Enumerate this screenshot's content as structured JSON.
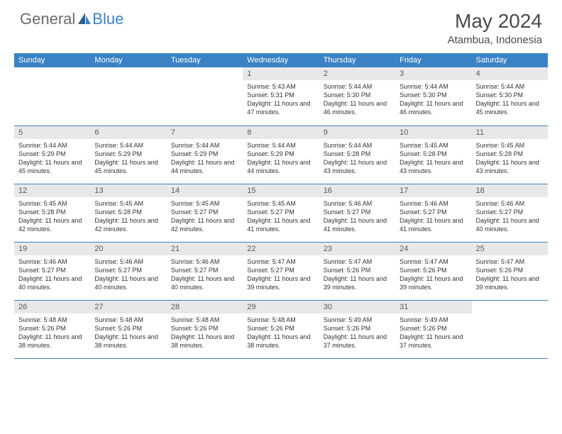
{
  "brand": {
    "part1": "General",
    "part2": "Blue"
  },
  "title": "May 2024",
  "location": "Atambua, Indonesia",
  "colors": {
    "header_bg": "#3b82c4",
    "header_text": "#ffffff",
    "daynum_bg": "#e8e8e8",
    "daynum_text": "#5a5a5a",
    "body_text": "#333333",
    "border": "#3b82c4"
  },
  "weekdays": [
    "Sunday",
    "Monday",
    "Tuesday",
    "Wednesday",
    "Thursday",
    "Friday",
    "Saturday"
  ],
  "weeks": [
    [
      null,
      null,
      null,
      {
        "d": "1",
        "sr": "5:43 AM",
        "ss": "5:31 PM",
        "dl": "11 hours and 47 minutes."
      },
      {
        "d": "2",
        "sr": "5:44 AM",
        "ss": "5:30 PM",
        "dl": "11 hours and 46 minutes."
      },
      {
        "d": "3",
        "sr": "5:44 AM",
        "ss": "5:30 PM",
        "dl": "11 hours and 46 minutes."
      },
      {
        "d": "4",
        "sr": "5:44 AM",
        "ss": "5:30 PM",
        "dl": "11 hours and 45 minutes."
      }
    ],
    [
      {
        "d": "5",
        "sr": "5:44 AM",
        "ss": "5:29 PM",
        "dl": "11 hours and 45 minutes."
      },
      {
        "d": "6",
        "sr": "5:44 AM",
        "ss": "5:29 PM",
        "dl": "11 hours and 45 minutes."
      },
      {
        "d": "7",
        "sr": "5:44 AM",
        "ss": "5:29 PM",
        "dl": "11 hours and 44 minutes."
      },
      {
        "d": "8",
        "sr": "5:44 AM",
        "ss": "5:29 PM",
        "dl": "11 hours and 44 minutes."
      },
      {
        "d": "9",
        "sr": "5:44 AM",
        "ss": "5:28 PM",
        "dl": "11 hours and 43 minutes."
      },
      {
        "d": "10",
        "sr": "5:45 AM",
        "ss": "5:28 PM",
        "dl": "11 hours and 43 minutes."
      },
      {
        "d": "11",
        "sr": "5:45 AM",
        "ss": "5:28 PM",
        "dl": "11 hours and 43 minutes."
      }
    ],
    [
      {
        "d": "12",
        "sr": "5:45 AM",
        "ss": "5:28 PM",
        "dl": "11 hours and 42 minutes."
      },
      {
        "d": "13",
        "sr": "5:45 AM",
        "ss": "5:28 PM",
        "dl": "11 hours and 42 minutes."
      },
      {
        "d": "14",
        "sr": "5:45 AM",
        "ss": "5:27 PM",
        "dl": "11 hours and 42 minutes."
      },
      {
        "d": "15",
        "sr": "5:45 AM",
        "ss": "5:27 PM",
        "dl": "11 hours and 41 minutes."
      },
      {
        "d": "16",
        "sr": "5:46 AM",
        "ss": "5:27 PM",
        "dl": "11 hours and 41 minutes."
      },
      {
        "d": "17",
        "sr": "5:46 AM",
        "ss": "5:27 PM",
        "dl": "11 hours and 41 minutes."
      },
      {
        "d": "18",
        "sr": "5:46 AM",
        "ss": "5:27 PM",
        "dl": "11 hours and 40 minutes."
      }
    ],
    [
      {
        "d": "19",
        "sr": "5:46 AM",
        "ss": "5:27 PM",
        "dl": "11 hours and 40 minutes."
      },
      {
        "d": "20",
        "sr": "5:46 AM",
        "ss": "5:27 PM",
        "dl": "11 hours and 40 minutes."
      },
      {
        "d": "21",
        "sr": "5:46 AM",
        "ss": "5:27 PM",
        "dl": "11 hours and 40 minutes."
      },
      {
        "d": "22",
        "sr": "5:47 AM",
        "ss": "5:27 PM",
        "dl": "11 hours and 39 minutes."
      },
      {
        "d": "23",
        "sr": "5:47 AM",
        "ss": "5:26 PM",
        "dl": "11 hours and 39 minutes."
      },
      {
        "d": "24",
        "sr": "5:47 AM",
        "ss": "5:26 PM",
        "dl": "11 hours and 39 minutes."
      },
      {
        "d": "25",
        "sr": "5:47 AM",
        "ss": "5:26 PM",
        "dl": "11 hours and 39 minutes."
      }
    ],
    [
      {
        "d": "26",
        "sr": "5:48 AM",
        "ss": "5:26 PM",
        "dl": "11 hours and 38 minutes."
      },
      {
        "d": "27",
        "sr": "5:48 AM",
        "ss": "5:26 PM",
        "dl": "11 hours and 38 minutes."
      },
      {
        "d": "28",
        "sr": "5:48 AM",
        "ss": "5:26 PM",
        "dl": "11 hours and 38 minutes."
      },
      {
        "d": "29",
        "sr": "5:48 AM",
        "ss": "5:26 PM",
        "dl": "11 hours and 38 minutes."
      },
      {
        "d": "30",
        "sr": "5:49 AM",
        "ss": "5:26 PM",
        "dl": "11 hours and 37 minutes."
      },
      {
        "d": "31",
        "sr": "5:49 AM",
        "ss": "5:26 PM",
        "dl": "11 hours and 37 minutes."
      },
      null
    ]
  ],
  "labels": {
    "sunrise": "Sunrise:",
    "sunset": "Sunset:",
    "daylight": "Daylight:"
  }
}
